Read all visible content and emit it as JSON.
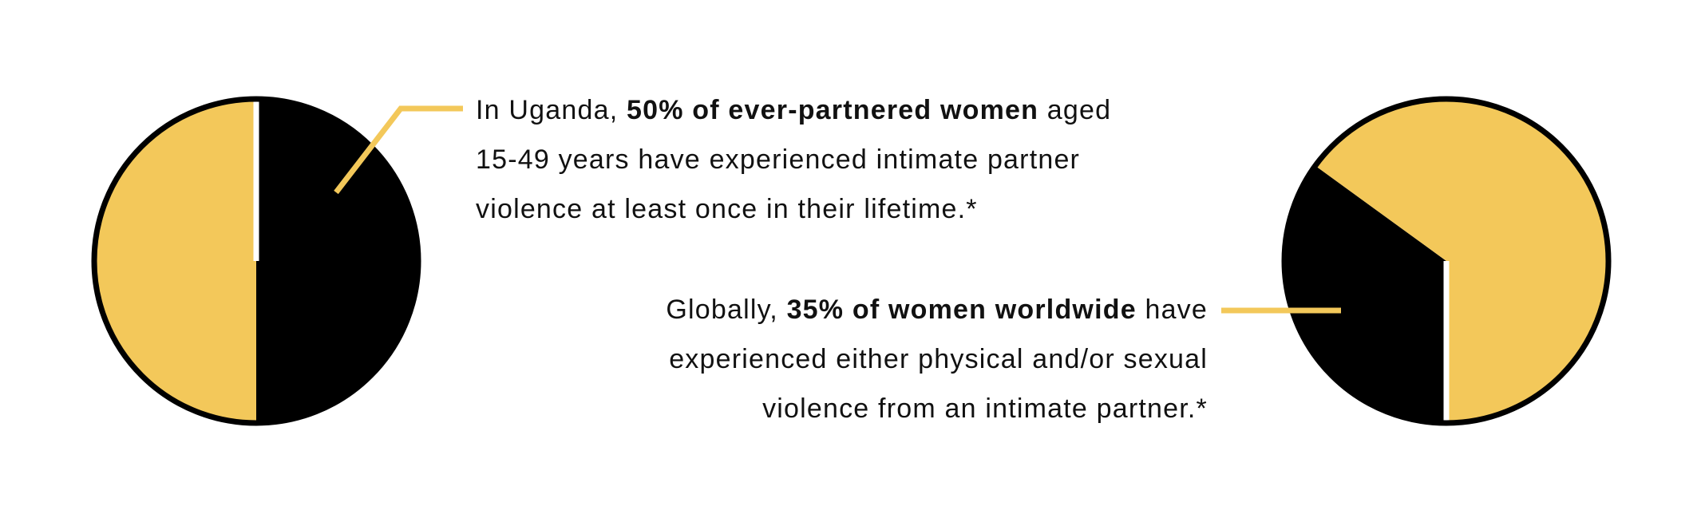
{
  "colors": {
    "gold": "#F3C85A",
    "black": "#000000",
    "text": "#111111",
    "background": "#FFFFFF"
  },
  "callouts": [
    {
      "lines": [
        [
          {
            "text": "In Uganda, ",
            "bold": false
          },
          {
            "text": "50% of ever-partnered women",
            "bold": true
          },
          {
            "text": " aged",
            "bold": false
          }
        ],
        [
          {
            "text": "15-49 years have experienced intimate partner",
            "bold": false
          }
        ],
        [
          {
            "text": "violence at least once in their lifetime.*",
            "bold": false
          }
        ]
      ]
    },
    {
      "lines": [
        [
          {
            "text": "Globally, ",
            "bold": false
          },
          {
            "text": "35% of women worldwide",
            "bold": true
          },
          {
            "text": " have",
            "bold": false
          }
        ],
        [
          {
            "text": "experienced either physical and/or sexual",
            "bold": false
          }
        ],
        [
          {
            "text": "violence from an intimate partner.*",
            "bold": false
          }
        ]
      ]
    }
  ],
  "chart_data": [
    {
      "type": "pie",
      "title": "",
      "slices": [
        {
          "value": 50,
          "color": "#000000"
        },
        {
          "value": 50,
          "color": "#F3C85A"
        }
      ]
    },
    {
      "type": "pie",
      "title": "",
      "slices": [
        {
          "value": 35,
          "color": "#000000"
        },
        {
          "value": 65,
          "color": "#F3C85A"
        }
      ]
    }
  ]
}
